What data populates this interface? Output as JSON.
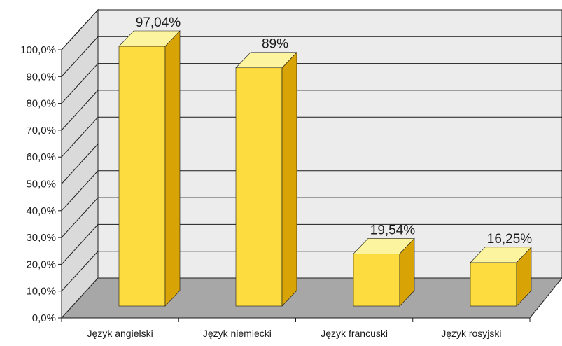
{
  "chart_data": {
    "type": "bar",
    "categories": [
      "Język angielski",
      "Język niemiecki",
      "Język francuski",
      "Język rosyjski"
    ],
    "values": [
      97.04,
      89,
      19.54,
      16.25
    ],
    "data_labels": [
      "97,04%",
      "89%",
      "19,54%",
      "16,25%"
    ],
    "ylim": [
      0,
      100
    ],
    "yticks": [
      0,
      10,
      20,
      30,
      40,
      50,
      60,
      70,
      80,
      90,
      100
    ],
    "ytick_labels": [
      "0,0%",
      "10,0%",
      "20,0%",
      "30,0%",
      "40,0%",
      "50,0%",
      "60,0%",
      "70,0%",
      "80,0%",
      "90,0%",
      "100,0%"
    ],
    "grid": true,
    "legend": "none",
    "style": "3d",
    "colors": {
      "bar_front": "#fcdc3f",
      "bar_side": "#d7a305",
      "bar_top": "#fdf4a0",
      "back_wall": "#ececec",
      "side_wall": "#dadada",
      "floor_top": "#a7a7a7",
      "floor_front": "#ffffff"
    }
  }
}
